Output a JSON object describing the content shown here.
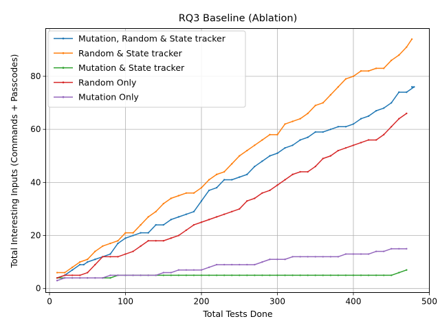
{
  "chart_data": {
    "type": "line",
    "title": "RQ3 Baseline (Ablation)",
    "xlabel": "Total Tests Done",
    "ylabel": "Total Interesting Inputs (Commands + Passcodes)",
    "xlim": [
      -5,
      500
    ],
    "ylim": [
      -1.5,
      98
    ],
    "xticks": [
      0,
      100,
      200,
      300,
      400,
      500
    ],
    "yticks": [
      0,
      20,
      40,
      60,
      80
    ],
    "grid": true,
    "legend_position": "upper left",
    "series": [
      {
        "name": "Mutation, Random & State tracker",
        "color": "#1f77b4",
        "points": [
          [
            10,
            4
          ],
          [
            20,
            5
          ],
          [
            30,
            7
          ],
          [
            40,
            9
          ],
          [
            45,
            9
          ],
          [
            50,
            10
          ],
          [
            60,
            11
          ],
          [
            70,
            12
          ],
          [
            80,
            13
          ],
          [
            90,
            17
          ],
          [
            100,
            19
          ],
          [
            110,
            20
          ],
          [
            120,
            21
          ],
          [
            130,
            21
          ],
          [
            140,
            24
          ],
          [
            150,
            24
          ],
          [
            160,
            26
          ],
          [
            170,
            27
          ],
          [
            180,
            28
          ],
          [
            190,
            29
          ],
          [
            200,
            33
          ],
          [
            210,
            37
          ],
          [
            220,
            38
          ],
          [
            230,
            41
          ],
          [
            240,
            41
          ],
          [
            250,
            42
          ],
          [
            260,
            43
          ],
          [
            270,
            46
          ],
          [
            280,
            48
          ],
          [
            290,
            50
          ],
          [
            300,
            51
          ],
          [
            310,
            53
          ],
          [
            320,
            54
          ],
          [
            330,
            56
          ],
          [
            340,
            57
          ],
          [
            350,
            59
          ],
          [
            360,
            59
          ],
          [
            370,
            60
          ],
          [
            380,
            61
          ],
          [
            390,
            61
          ],
          [
            400,
            62
          ],
          [
            410,
            64
          ],
          [
            420,
            65
          ],
          [
            430,
            67
          ],
          [
            440,
            68
          ],
          [
            450,
            70
          ],
          [
            460,
            74
          ],
          [
            470,
            74
          ],
          [
            480,
            76
          ],
          [
            477,
            76
          ]
        ]
      },
      {
        "name": "Random & State tracker",
        "color": "#ff7f0e",
        "points": [
          [
            10,
            6
          ],
          [
            20,
            6
          ],
          [
            30,
            8
          ],
          [
            40,
            10
          ],
          [
            50,
            11
          ],
          [
            60,
            14
          ],
          [
            70,
            16
          ],
          [
            80,
            17
          ],
          [
            90,
            18
          ],
          [
            100,
            21
          ],
          [
            110,
            21
          ],
          [
            120,
            24
          ],
          [
            130,
            27
          ],
          [
            140,
            29
          ],
          [
            150,
            32
          ],
          [
            160,
            34
          ],
          [
            170,
            35
          ],
          [
            180,
            36
          ],
          [
            190,
            36
          ],
          [
            200,
            38
          ],
          [
            210,
            41
          ],
          [
            220,
            43
          ],
          [
            230,
            44
          ],
          [
            240,
            47
          ],
          [
            250,
            50
          ],
          [
            260,
            52
          ],
          [
            270,
            54
          ],
          [
            280,
            56
          ],
          [
            290,
            58
          ],
          [
            300,
            58
          ],
          [
            310,
            62
          ],
          [
            320,
            63
          ],
          [
            330,
            64
          ],
          [
            340,
            66
          ],
          [
            350,
            69
          ],
          [
            360,
            70
          ],
          [
            370,
            73
          ],
          [
            380,
            76
          ],
          [
            390,
            79
          ],
          [
            400,
            80
          ],
          [
            410,
            82
          ],
          [
            420,
            82
          ],
          [
            430,
            83
          ],
          [
            440,
            83
          ],
          [
            450,
            86
          ],
          [
            460,
            88
          ],
          [
            470,
            91
          ],
          [
            477,
            94
          ]
        ]
      },
      {
        "name": "Mutation & State tracker",
        "color": "#2ca02c",
        "points": [
          [
            10,
            4
          ],
          [
            20,
            4
          ],
          [
            30,
            4
          ],
          [
            40,
            4
          ],
          [
            50,
            4
          ],
          [
            60,
            4
          ],
          [
            70,
            4
          ],
          [
            80,
            4
          ],
          [
            90,
            5
          ],
          [
            100,
            5
          ],
          [
            110,
            5
          ],
          [
            120,
            5
          ],
          [
            130,
            5
          ],
          [
            140,
            5
          ],
          [
            150,
            5
          ],
          [
            160,
            5
          ],
          [
            170,
            5
          ],
          [
            180,
            5
          ],
          [
            190,
            5
          ],
          [
            200,
            5
          ],
          [
            210,
            5
          ],
          [
            220,
            5
          ],
          [
            230,
            5
          ],
          [
            240,
            5
          ],
          [
            250,
            5
          ],
          [
            260,
            5
          ],
          [
            270,
            5
          ],
          [
            280,
            5
          ],
          [
            290,
            5
          ],
          [
            300,
            5
          ],
          [
            310,
            5
          ],
          [
            320,
            5
          ],
          [
            330,
            5
          ],
          [
            340,
            5
          ],
          [
            350,
            5
          ],
          [
            360,
            5
          ],
          [
            370,
            5
          ],
          [
            380,
            5
          ],
          [
            390,
            5
          ],
          [
            400,
            5
          ],
          [
            410,
            5
          ],
          [
            420,
            5
          ],
          [
            430,
            5
          ],
          [
            440,
            5
          ],
          [
            450,
            5
          ],
          [
            460,
            6
          ],
          [
            470,
            7
          ]
        ]
      },
      {
        "name": "Random Only",
        "color": "#d62728",
        "points": [
          [
            10,
            4
          ],
          [
            20,
            5
          ],
          [
            30,
            5
          ],
          [
            40,
            5
          ],
          [
            50,
            6
          ],
          [
            60,
            9
          ],
          [
            70,
            12
          ],
          [
            80,
            12
          ],
          [
            90,
            12
          ],
          [
            100,
            13
          ],
          [
            110,
            14
          ],
          [
            120,
            16
          ],
          [
            130,
            18
          ],
          [
            140,
            18
          ],
          [
            150,
            18
          ],
          [
            160,
            19
          ],
          [
            170,
            20
          ],
          [
            180,
            22
          ],
          [
            190,
            24
          ],
          [
            200,
            25
          ],
          [
            210,
            26
          ],
          [
            220,
            27
          ],
          [
            230,
            28
          ],
          [
            240,
            29
          ],
          [
            250,
            30
          ],
          [
            260,
            33
          ],
          [
            270,
            34
          ],
          [
            280,
            36
          ],
          [
            290,
            37
          ],
          [
            300,
            39
          ],
          [
            310,
            41
          ],
          [
            320,
            43
          ],
          [
            330,
            44
          ],
          [
            340,
            44
          ],
          [
            350,
            46
          ],
          [
            360,
            49
          ],
          [
            370,
            50
          ],
          [
            380,
            52
          ],
          [
            390,
            53
          ],
          [
            400,
            54
          ],
          [
            410,
            55
          ],
          [
            420,
            56
          ],
          [
            430,
            56
          ],
          [
            440,
            58
          ],
          [
            450,
            61
          ],
          [
            460,
            64
          ],
          [
            470,
            66
          ]
        ]
      },
      {
        "name": "Mutation Only",
        "color": "#9467bd",
        "points": [
          [
            10,
            3
          ],
          [
            20,
            4
          ],
          [
            30,
            4
          ],
          [
            40,
            4
          ],
          [
            50,
            4
          ],
          [
            60,
            4
          ],
          [
            70,
            4
          ],
          [
            80,
            5
          ],
          [
            90,
            5
          ],
          [
            100,
            5
          ],
          [
            110,
            5
          ],
          [
            120,
            5
          ],
          [
            130,
            5
          ],
          [
            140,
            5
          ],
          [
            150,
            6
          ],
          [
            160,
            6
          ],
          [
            170,
            7
          ],
          [
            180,
            7
          ],
          [
            190,
            7
          ],
          [
            200,
            7
          ],
          [
            210,
            8
          ],
          [
            220,
            9
          ],
          [
            230,
            9
          ],
          [
            240,
            9
          ],
          [
            250,
            9
          ],
          [
            260,
            9
          ],
          [
            270,
            9
          ],
          [
            280,
            10
          ],
          [
            290,
            11
          ],
          [
            300,
            11
          ],
          [
            310,
            11
          ],
          [
            320,
            12
          ],
          [
            330,
            12
          ],
          [
            340,
            12
          ],
          [
            350,
            12
          ],
          [
            360,
            12
          ],
          [
            370,
            12
          ],
          [
            380,
            12
          ],
          [
            390,
            13
          ],
          [
            400,
            13
          ],
          [
            410,
            13
          ],
          [
            420,
            13
          ],
          [
            430,
            14
          ],
          [
            440,
            14
          ],
          [
            450,
            15
          ],
          [
            460,
            15
          ],
          [
            470,
            15
          ]
        ]
      }
    ]
  }
}
